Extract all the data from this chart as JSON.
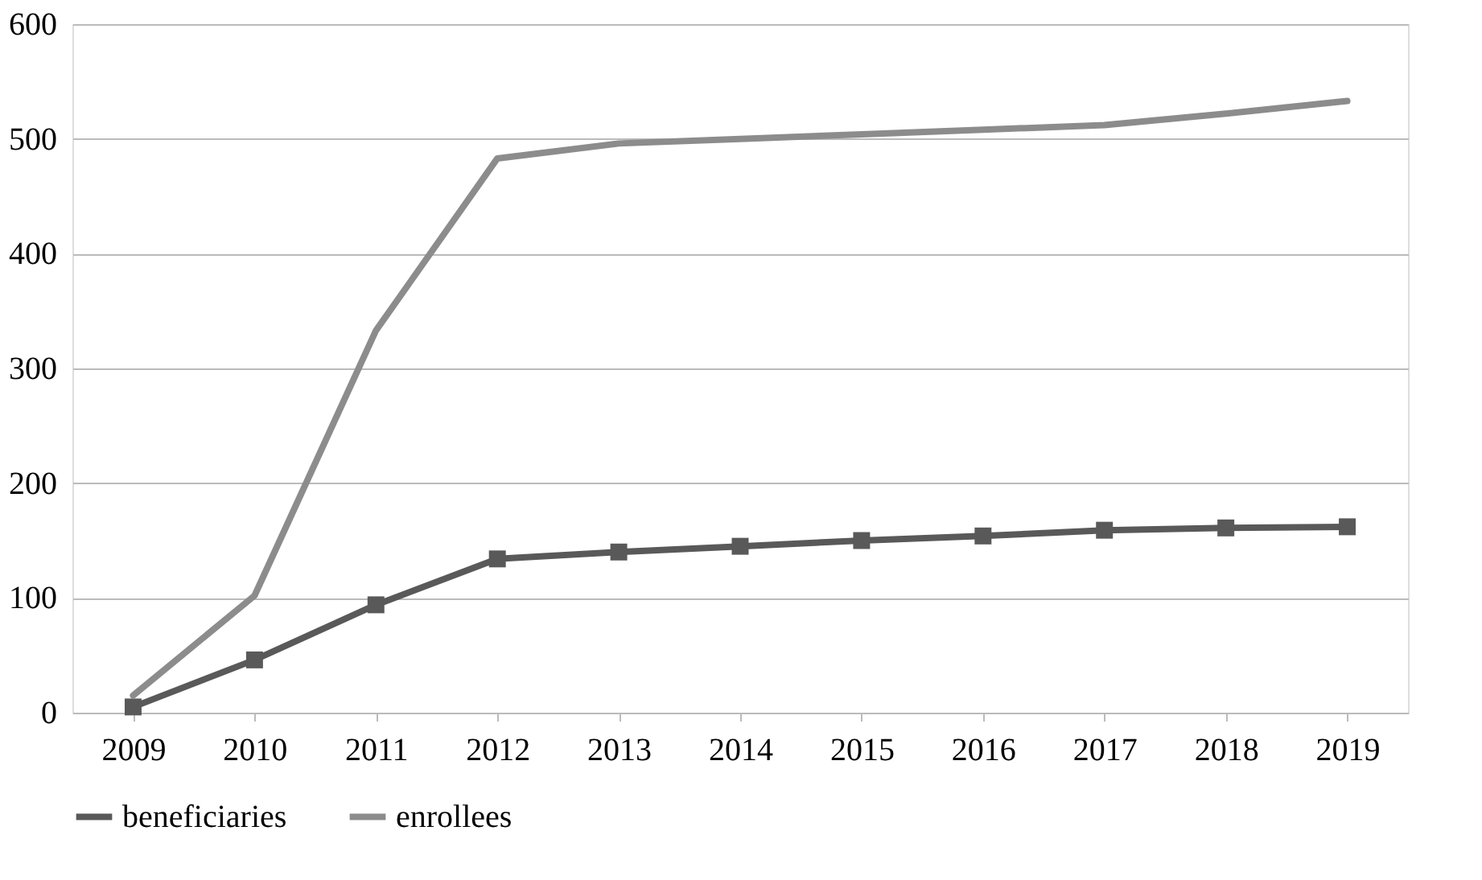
{
  "chart_data": {
    "type": "line",
    "categories": [
      "2009",
      "2010",
      "2011",
      "2012",
      "2013",
      "2014",
      "2015",
      "2016",
      "2017",
      "2018",
      "2019"
    ],
    "series": [
      {
        "name": "beneficiaries",
        "color": "#595959",
        "marker": "square",
        "values": [
          5,
          46,
          94,
          134,
          140,
          145,
          150,
          154,
          159,
          161,
          162
        ]
      },
      {
        "name": "enrollees",
        "color": "#8c8c8c",
        "marker": "none",
        "values": [
          15,
          102,
          333,
          483,
          496,
          500,
          504,
          508,
          512,
          522,
          533
        ]
      }
    ],
    "ylim": [
      0,
      600
    ],
    "yticks": [
      0,
      100,
      200,
      300,
      400,
      500,
      600
    ],
    "grid": "y",
    "legend": "bottom"
  }
}
